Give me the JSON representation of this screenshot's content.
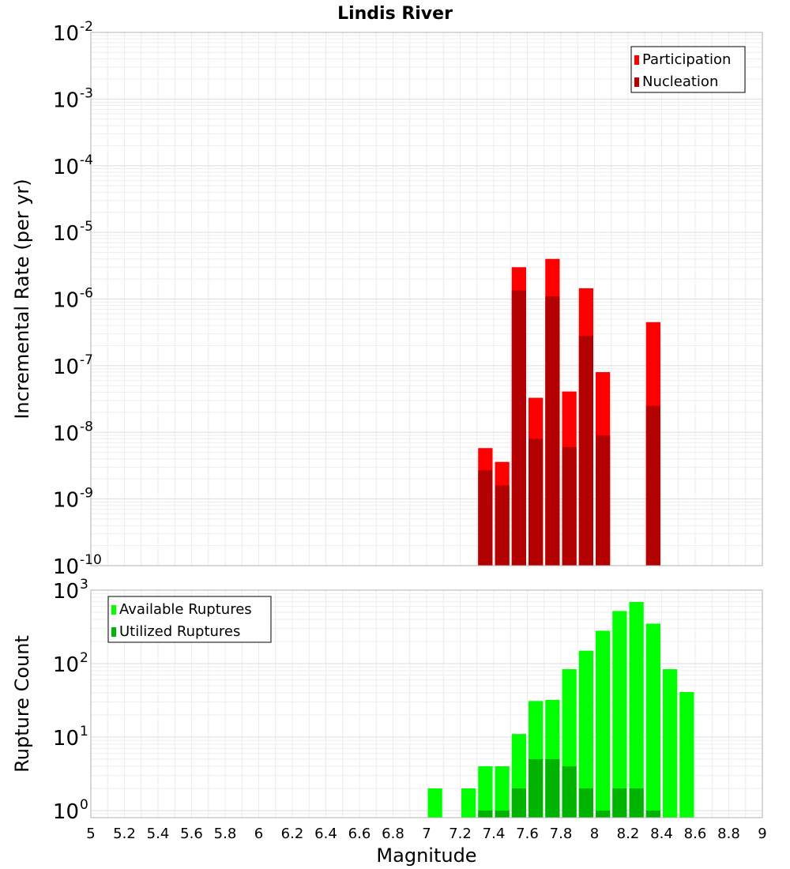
{
  "chart_data": [
    {
      "type": "bar",
      "title": "Lindis River",
      "xlabel": "",
      "ylabel": "Incremental Rate (per yr)",
      "yscale": "log",
      "ylim": [
        1e-10,
        0.01
      ],
      "xlim": [
        5,
        9
      ],
      "ytick_exponents": [
        "-10",
        "-9",
        "-8",
        "-7",
        "-6",
        "-5",
        "-4",
        "-3",
        "-2"
      ],
      "grid": true,
      "legend_position": "top-right",
      "series": [
        {
          "name": "Participation",
          "color": "#ff0000",
          "x": [
            7.35,
            7.45,
            7.55,
            7.65,
            7.75,
            7.85,
            7.95,
            8.05,
            8.35
          ],
          "values": [
            5.8e-09,
            3.6e-09,
            3e-06,
            3.3e-08,
            4e-06,
            4.1e-08,
            1.45e-06,
            8e-08,
            4.5e-07
          ]
        },
        {
          "name": "Nucleation",
          "color": "#b30000",
          "x": [
            7.35,
            7.45,
            7.55,
            7.65,
            7.75,
            7.85,
            7.95,
            8.05,
            8.35
          ],
          "values": [
            2.7e-09,
            1.6e-09,
            1.35e-06,
            8e-09,
            1.1e-06,
            6e-09,
            2.8e-07,
            9e-09,
            2.5e-08
          ]
        }
      ]
    },
    {
      "type": "bar",
      "title": "",
      "xlabel": "Magnitude",
      "ylabel": "Rupture Count",
      "yscale": "log",
      "ylim": [
        0.8,
        1000
      ],
      "xlim": [
        5,
        9
      ],
      "ytick_exponents": [
        "0",
        "1",
        "2",
        "3"
      ],
      "xticks": [
        "5",
        "5.2",
        "5.4",
        "5.6",
        "5.8",
        "6",
        "6.2",
        "6.4",
        "6.6",
        "6.8",
        "7",
        "7.2",
        "7.4",
        "7.6",
        "7.8",
        "8",
        "8.2",
        "8.4",
        "8.6",
        "8.8",
        "9"
      ],
      "grid": true,
      "legend_position": "top-left",
      "series": [
        {
          "name": "Available Ruptures",
          "color": "#00ff00",
          "x": [
            7.05,
            7.25,
            7.35,
            7.45,
            7.55,
            7.65,
            7.75,
            7.85,
            7.95,
            8.05,
            8.15,
            8.25,
            8.35,
            8.45,
            8.55
          ],
          "values": [
            2,
            2,
            4,
            4,
            11,
            31,
            32,
            84,
            150,
            280,
            520,
            690,
            350,
            84,
            41
          ]
        },
        {
          "name": "Utilized Ruptures",
          "color": "#00b300",
          "x": [
            7.35,
            7.45,
            7.55,
            7.65,
            7.75,
            7.85,
            7.95,
            8.05,
            8.15,
            8.25,
            8.35
          ],
          "values": [
            1,
            1,
            2,
            5,
            5,
            4,
            2,
            1,
            2,
            2,
            1
          ]
        }
      ]
    }
  ]
}
